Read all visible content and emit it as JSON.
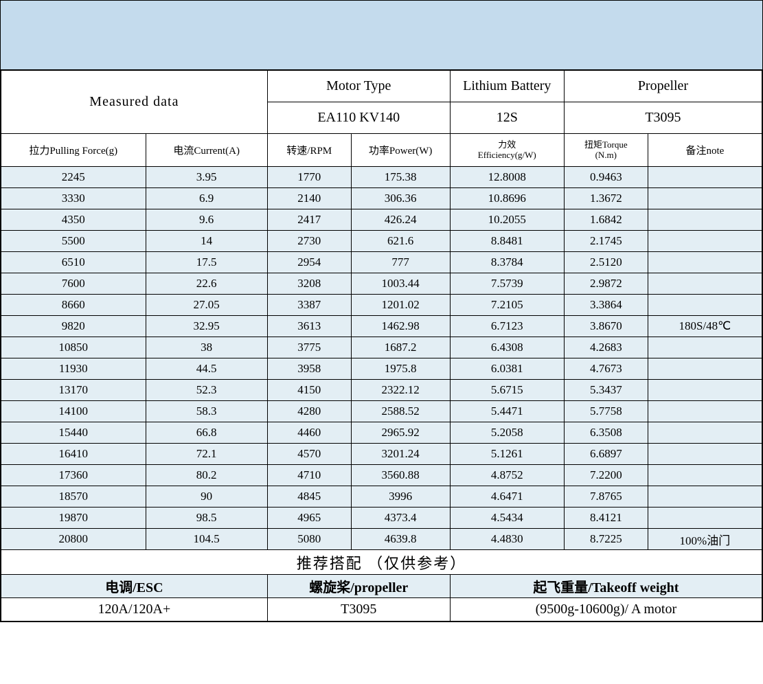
{
  "colors": {
    "topband": "#c4dbed",
    "data_row_bg": "#e3eef4",
    "header_bg": "#ffffff",
    "border": "#000000"
  },
  "header": {
    "measured_data": "Measured data",
    "motor_type_label": "Motor Type",
    "motor_type_value": "EA110 KV140",
    "battery_label": "Lithium Battery",
    "battery_value": "12S",
    "propeller_label": "Propeller",
    "propeller_value": "T3095"
  },
  "columns": [
    "拉力Pulling Force(g)",
    "电流Current(A)",
    "转速/RPM",
    "功率Power(W)",
    "力效Efficiency(g/W)",
    "扭矩Torque(N.m)",
    "备注note"
  ],
  "column_widths_pct": [
    19,
    16,
    11,
    13,
    15,
    11,
    15
  ],
  "rows": [
    [
      "2245",
      "3.95",
      "1770",
      "175.38",
      "12.8008",
      "0.9463",
      ""
    ],
    [
      "3330",
      "6.9",
      "2140",
      "306.36",
      "10.8696",
      "1.3672",
      ""
    ],
    [
      "4350",
      "9.6",
      "2417",
      "426.24",
      "10.2055",
      "1.6842",
      ""
    ],
    [
      "5500",
      "14",
      "2730",
      "621.6",
      "8.8481",
      "2.1745",
      ""
    ],
    [
      "6510",
      "17.5",
      "2954",
      "777",
      "8.3784",
      "2.5120",
      ""
    ],
    [
      "7600",
      "22.6",
      "3208",
      "1003.44",
      "7.5739",
      "2.9872",
      ""
    ],
    [
      "8660",
      "27.05",
      "3387",
      "1201.02",
      "7.2105",
      "3.3864",
      ""
    ],
    [
      "9820",
      "32.95",
      "3613",
      "1462.98",
      "6.7123",
      "3.8670",
      "180S/48℃"
    ],
    [
      "10850",
      "38",
      "3775",
      "1687.2",
      "6.4308",
      "4.2683",
      ""
    ],
    [
      "11930",
      "44.5",
      "3958",
      "1975.8",
      "6.0381",
      "4.7673",
      ""
    ],
    [
      "13170",
      "52.3",
      "4150",
      "2322.12",
      "5.6715",
      "5.3437",
      ""
    ],
    [
      "14100",
      "58.3",
      "4280",
      "2588.52",
      "5.4471",
      "5.7758",
      ""
    ],
    [
      "15440",
      "66.8",
      "4460",
      "2965.92",
      "5.2058",
      "6.3508",
      ""
    ],
    [
      "16410",
      "72.1",
      "4570",
      "3201.24",
      "5.1261",
      "6.6897",
      ""
    ],
    [
      "17360",
      "80.2",
      "4710",
      "3560.88",
      "4.8752",
      "7.2200",
      ""
    ],
    [
      "18570",
      "90",
      "4845",
      "3996",
      "4.6471",
      "7.8765",
      ""
    ],
    [
      "19870",
      "98.5",
      "4965",
      "4373.4",
      "4.5434",
      "8.4121",
      ""
    ],
    [
      "20800",
      "104.5",
      "5080",
      "4639.8",
      "4.4830",
      "8.7225",
      "100%油门"
    ]
  ],
  "recommend": {
    "title": "推荐搭配  （仅供参考）",
    "headers": [
      "电调/ESC",
      "螺旋桨/propeller",
      "起飞重量/Takeoff weight"
    ],
    "values": [
      "120A/120A+",
      "T3095",
      "(9500g-10600g)/ A motor"
    ]
  }
}
